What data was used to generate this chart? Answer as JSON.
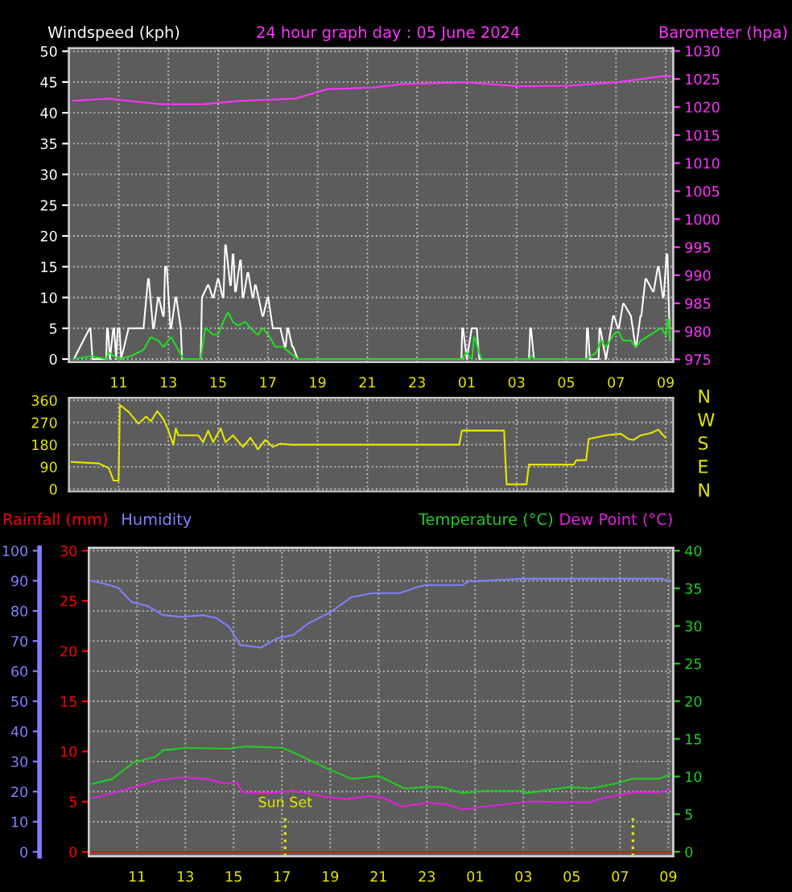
{
  "chart_data": [
    {
      "type": "line",
      "title": "24 hour graph day : 05 June 2024",
      "ylabel": "Windspeed (kph)",
      "y2label": "Barometer (hpa)",
      "xlim": [
        "2024-06-04T09:00",
        "2024-06-05T09:18"
      ],
      "xticks": [
        {
          "value": "2024-06-04T11:00",
          "label": "11"
        },
        {
          "value": "2024-06-04T13:00",
          "label": "13"
        },
        {
          "value": "2024-06-04T15:00",
          "label": "15"
        },
        {
          "value": "2024-06-04T17:00",
          "label": "17"
        },
        {
          "value": "2024-06-04T19:00",
          "label": "19"
        },
        {
          "value": "2024-06-04T21:00",
          "label": "21"
        },
        {
          "value": "2024-06-04T23:00",
          "label": "23"
        },
        {
          "value": "2024-06-05T01:00",
          "label": "01"
        },
        {
          "value": "2024-06-05T03:00",
          "label": "03"
        },
        {
          "value": "2024-06-05T05:00",
          "label": "05"
        },
        {
          "value": "2024-06-05T07:00",
          "label": "07"
        },
        {
          "value": "2024-06-05T09:00",
          "label": "09"
        }
      ],
      "ylim": [
        -0.5,
        50.5
      ],
      "yticks": [
        0,
        5,
        10,
        15,
        20,
        25,
        30,
        35,
        40,
        45,
        50
      ],
      "y2lim": [
        974.5,
        1030.5
      ],
      "y2ticks": [
        975,
        980,
        985,
        990,
        995,
        1000,
        1005,
        1010,
        1015,
        1020,
        1025,
        1030
      ],
      "grid": true,
      "line_style": "solid",
      "series": [
        {
          "color": "#ffffff",
          "x": [
            "2024-06-04T09:12",
            "2024-06-04T09:50",
            "2024-06-04T09:52",
            "2024-06-04T09:57",
            "2024-06-04T10:30",
            "2024-06-04T10:32",
            "2024-06-04T10:34",
            "2024-06-04T10:39",
            "2024-06-04T10:47",
            "2024-06-04T10:49",
            "2024-06-04T10:54",
            "2024-06-04T10:58",
            "2024-06-04T11:02",
            "2024-06-04T11:06",
            "2024-06-04T11:24",
            "2024-06-04T12:00",
            "2024-06-04T12:11",
            "2024-06-04T12:13",
            "2024-06-04T12:23",
            "2024-06-04T12:25",
            "2024-06-04T12:35",
            "2024-06-04T12:37",
            "2024-06-04T12:47",
            "2024-06-04T12:49",
            "2024-06-04T12:52",
            "2024-06-04T12:56",
            "2024-06-04T13:05",
            "2024-06-04T13:07",
            "2024-06-04T13:17",
            "2024-06-04T13:19",
            "2024-06-04T13:30",
            "2024-06-04T13:33",
            "2024-06-04T14:18",
            "2024-06-04T14:21",
            "2024-06-04T14:35",
            "2024-06-04T14:37",
            "2024-06-04T14:47",
            "2024-06-04T14:49",
            "2024-06-04T14:59",
            "2024-06-04T15:01",
            "2024-06-04T15:11",
            "2024-06-04T15:13",
            "2024-06-04T15:17",
            "2024-06-04T15:19",
            "2024-06-04T15:29",
            "2024-06-04T15:31",
            "2024-06-04T15:35",
            "2024-06-04T15:37",
            "2024-06-04T15:41",
            "2024-06-04T15:43",
            "2024-06-04T15:53",
            "2024-06-04T15:55",
            "2024-06-04T15:59",
            "2024-06-04T16:01",
            "2024-06-04T16:11",
            "2024-06-04T16:13",
            "2024-06-04T16:23",
            "2024-06-04T16:25",
            "2024-06-04T16:29",
            "2024-06-04T16:31",
            "2024-06-04T16:47",
            "2024-06-04T16:49",
            "2024-06-04T16:59",
            "2024-06-04T17:01",
            "2024-06-04T17:12",
            "2024-06-04T17:30",
            "2024-06-04T17:41",
            "2024-06-04T17:43",
            "2024-06-04T17:47",
            "2024-06-04T17:49",
            "2024-06-04T17:59",
            "2024-06-04T18:01",
            "2024-06-04T18:12",
            "2024-06-05T00:47",
            "2024-06-05T00:49",
            "2024-06-05T00:51",
            "2024-06-05T01:00",
            "2024-06-05T01:12",
            "2024-06-05T01:24",
            "2024-06-05T01:30",
            "2024-06-05T03:30",
            "2024-06-05T03:33",
            "2024-06-05T03:35",
            "2024-06-05T03:42",
            "2024-06-05T05:48",
            "2024-06-05T05:50",
            "2024-06-05T05:52",
            "2024-06-05T05:57",
            "2024-06-05T06:18",
            "2024-06-05T06:20",
            "2024-06-05T06:22",
            "2024-06-05T06:30",
            "2024-06-05T06:36",
            "2024-06-05T06:53",
            "2024-06-05T06:55",
            "2024-06-05T07:05",
            "2024-06-05T07:07",
            "2024-06-05T07:17",
            "2024-06-05T07:19",
            "2024-06-05T07:36",
            "2024-06-05T07:47",
            "2024-06-05T07:49",
            "2024-06-05T07:59",
            "2024-06-05T08:01",
            "2024-06-05T08:11",
            "2024-06-05T08:13",
            "2024-06-05T08:29",
            "2024-06-05T08:31",
            "2024-06-05T08:41",
            "2024-06-05T08:43",
            "2024-06-05T08:53",
            "2024-06-05T08:55",
            "2024-06-05T09:02",
            "2024-06-05T09:04",
            "2024-06-05T09:09"
          ],
          "values": [
            0,
            5,
            5,
            0,
            0,
            5,
            5,
            0,
            5,
            5,
            0,
            5,
            5,
            0,
            5,
            5,
            13,
            13,
            5,
            5,
            10,
            10,
            7,
            7,
            15,
            15,
            5,
            5,
            10,
            10,
            5,
            0,
            0,
            10,
            12,
            12,
            10,
            10,
            13,
            13,
            10,
            10,
            18.5,
            18.5,
            12,
            12,
            17,
            17,
            11,
            11,
            16,
            16,
            10,
            10,
            14,
            14,
            10,
            10,
            12,
            12,
            7,
            7,
            10,
            10,
            5,
            5,
            2,
            2,
            5,
            5,
            2,
            2,
            0,
            0,
            5,
            5,
            0,
            5,
            5,
            0,
            0,
            5,
            5,
            0,
            0,
            5,
            5,
            0,
            0,
            5,
            5,
            2,
            0,
            7,
            7,
            5,
            5,
            9,
            9,
            7,
            2,
            2,
            7,
            7,
            13,
            13,
            11,
            11,
            15,
            15,
            10,
            10,
            17,
            17,
            5
          ]
        },
        {
          "color": "#22dd22",
          "x": [
            "2024-06-04T09:12",
            "2024-06-04T09:54",
            "2024-06-04T10:30",
            "2024-06-04T10:35",
            "2024-06-04T10:37",
            "2024-06-04T11:00",
            "2024-06-04T11:30",
            "2024-06-04T12:00",
            "2024-06-04T12:17",
            "2024-06-04T12:19",
            "2024-06-04T12:36",
            "2024-06-04T12:47",
            "2024-06-04T12:49",
            "2024-06-04T13:05",
            "2024-06-04T13:07",
            "2024-06-04T13:24",
            "2024-06-04T13:36",
            "2024-06-04T14:18",
            "2024-06-04T14:29",
            "2024-06-04T14:31",
            "2024-06-04T14:47",
            "2024-06-04T15:00",
            "2024-06-04T15:12",
            "2024-06-04T15:23",
            "2024-06-04T15:25",
            "2024-06-04T15:36",
            "2024-06-04T15:47",
            "2024-06-04T15:49",
            "2024-06-04T16:05",
            "2024-06-04T16:07",
            "2024-06-04T16:18",
            "2024-06-04T16:35",
            "2024-06-04T16:37",
            "2024-06-04T16:47",
            "2024-06-04T16:49",
            "2024-06-04T16:59",
            "2024-06-04T17:01",
            "2024-06-04T17:18",
            "2024-06-04T17:36",
            "2024-06-04T17:54",
            "2024-06-04T18:12",
            "2024-06-05T00:48",
            "2024-06-05T00:59",
            "2024-06-05T01:01",
            "2024-06-05T01:11",
            "2024-06-05T01:13",
            "2024-06-05T01:17",
            "2024-06-05T01:19",
            "2024-06-05T01:30",
            "2024-06-05T01:36",
            "2024-06-05T03:30",
            "2024-06-05T03:35",
            "2024-06-05T03:37",
            "2024-06-05T03:42",
            "2024-06-05T05:48",
            "2024-06-05T06:00",
            "2024-06-05T06:12",
            "2024-06-05T06:23",
            "2024-06-05T06:25",
            "2024-06-05T06:35",
            "2024-06-05T06:37",
            "2024-06-05T06:54",
            "2024-06-05T07:06",
            "2024-06-05T07:17",
            "2024-06-05T07:19",
            "2024-06-05T07:36",
            "2024-06-05T07:47",
            "2024-06-05T07:49",
            "2024-06-05T08:00",
            "2024-06-05T08:12",
            "2024-06-05T08:24",
            "2024-06-05T08:36",
            "2024-06-05T08:47",
            "2024-06-05T08:49",
            "2024-06-05T08:59",
            "2024-06-05T09:01",
            "2024-06-05T09:05",
            "2024-06-05T09:07",
            "2024-06-05T09:10"
          ],
          "values": [
            0,
            0.5,
            0,
            1,
            1,
            0,
            0.5,
            1.5,
            3.5,
            3.5,
            3,
            2,
            2,
            3.5,
            3.5,
            1.5,
            0,
            0,
            5,
            5,
            4,
            4,
            6,
            7.5,
            7.5,
            6,
            5.5,
            5.5,
            6,
            6,
            5,
            4,
            4,
            5,
            5,
            4,
            4,
            2,
            2,
            1,
            0,
            0,
            1,
            1,
            0,
            0,
            3.5,
            3.5,
            1,
            0,
            0,
            0.5,
            0.5,
            0,
            0,
            0.5,
            1,
            3,
            3,
            2,
            2,
            4,
            4.5,
            3,
            3,
            3,
            2,
            2,
            3,
            3.5,
            4,
            4.5,
            5,
            5,
            4,
            4,
            6.5,
            6.5,
            3
          ]
        },
        {
          "color": "#ff33ff",
          "axis": "y2",
          "x": [
            "2024-06-04T09:10",
            "2024-06-04T10:34",
            "2024-06-04T12:42",
            "2024-06-04T14:24",
            "2024-06-04T15:54",
            "2024-06-04T18:06",
            "2024-06-04T19:24",
            "2024-06-04T21:18",
            "2024-06-04T22:24",
            "2024-06-05T01:00",
            "2024-06-05T03:06",
            "2024-06-05T05:06",
            "2024-06-05T07:00",
            "2024-06-05T08:54",
            "2024-06-05T09:12"
          ],
          "values": [
            1021.1,
            1021.5,
            1020.5,
            1020.5,
            1021.1,
            1021.5,
            1023.2,
            1023.5,
            1024.1,
            1024.4,
            1023.7,
            1023.8,
            1024.4,
            1025.5,
            1025.5
          ]
        }
      ]
    },
    {
      "type": "line",
      "tick_labels": "y",
      "xlim": [
        "2024-06-04T09:00",
        "2024-06-05T09:18"
      ],
      "xticks": [
        {
          "value": "2024-06-04T11:00",
          "label": null
        },
        {
          "value": "2024-06-04T13:00",
          "label": null
        },
        {
          "value": "2024-06-04T15:00",
          "label": null
        },
        {
          "value": "2024-06-04T17:00",
          "label": null
        },
        {
          "value": "2024-06-04T19:00",
          "label": null
        },
        {
          "value": "2024-06-04T21:00",
          "label": null
        },
        {
          "value": "2024-06-04T23:00",
          "label": null
        },
        {
          "value": "2024-06-05T01:00",
          "label": null
        },
        {
          "value": "2024-06-05T03:00",
          "label": null
        },
        {
          "value": "2024-06-05T05:00",
          "label": null
        },
        {
          "value": "2024-06-05T07:00",
          "label": null
        },
        {
          "value": "2024-06-05T09:00",
          "label": null
        }
      ],
      "ylim": [
        -10,
        370
      ],
      "yticks": [
        0,
        90,
        180,
        270,
        360
      ],
      "annotations": [
        "N",
        "W",
        "S",
        "E",
        "N"
      ],
      "grid": true,
      "line_style": "solid",
      "series": [
        {
          "color": "#e6e600",
          "x": [
            "2024-06-04T09:06",
            "2024-06-04T10:12",
            "2024-06-04T10:36",
            "2024-06-04T10:48",
            "2024-06-04T11:00",
            "2024-06-04T11:03",
            "2024-06-04T11:24",
            "2024-06-04T11:48",
            "2024-06-04T12:06",
            "2024-06-04T12:18",
            "2024-06-04T12:33",
            "2024-06-04T12:48",
            "2024-06-04T13:00",
            "2024-06-04T13:12",
            "2024-06-04T13:18",
            "2024-06-04T13:24",
            "2024-06-04T14:12",
            "2024-06-04T14:24",
            "2024-06-04T14:36",
            "2024-06-04T14:48",
            "2024-06-04T15:06",
            "2024-06-04T15:18",
            "2024-06-04T15:36",
            "2024-06-04T16:00",
            "2024-06-04T16:18",
            "2024-06-04T16:36",
            "2024-06-04T16:54",
            "2024-06-04T17:12",
            "2024-06-04T17:30",
            "2024-06-04T17:54",
            "2024-06-05T00:42",
            "2024-06-05T00:48",
            "2024-06-05T02:30",
            "2024-06-05T02:36",
            "2024-06-05T03:24",
            "2024-06-05T03:30",
            "2024-06-05T05:18",
            "2024-06-05T05:24",
            "2024-06-05T05:48",
            "2024-06-05T05:54",
            "2024-06-05T06:36",
            "2024-06-05T07:12",
            "2024-06-05T07:30",
            "2024-06-05T07:42",
            "2024-06-05T08:00",
            "2024-06-05T08:24",
            "2024-06-05T08:42",
            "2024-06-05T08:54",
            "2024-06-05T09:00"
          ],
          "values": [
            110,
            104,
            85,
            34,
            34,
            341,
            313,
            265,
            294,
            275,
            316,
            284,
            237,
            180,
            246,
            218,
            218,
            190,
            237,
            190,
            246,
            190,
            218,
            171,
            208,
            161,
            199,
            171,
            184,
            180,
            180,
            237,
            237,
            19,
            19,
            99,
            99,
            117,
            117,
            203,
            218,
            224,
            203,
            199,
            218,
            227,
            241,
            218,
            208
          ]
        }
      ]
    },
    {
      "type": "line",
      "xlim": [
        "2024-06-04T09:00",
        "2024-06-05T09:12"
      ],
      "xticks": [
        {
          "value": "2024-06-04T11:00",
          "label": "11"
        },
        {
          "value": "2024-06-04T13:00",
          "label": "13"
        },
        {
          "value": "2024-06-04T15:00",
          "label": "15"
        },
        {
          "value": "2024-06-04T17:00",
          "label": "17"
        },
        {
          "value": "2024-06-04T19:00",
          "label": "19"
        },
        {
          "value": "2024-06-04T21:00",
          "label": "21"
        },
        {
          "value": "2024-06-04T23:00",
          "label": "23"
        },
        {
          "value": "2024-06-05T01:00",
          "label": "01"
        },
        {
          "value": "2024-06-05T03:00",
          "label": "03"
        },
        {
          "value": "2024-06-05T05:00",
          "label": "05"
        },
        {
          "value": "2024-06-05T07:00",
          "label": "07"
        },
        {
          "value": "2024-06-05T09:00",
          "label": "09"
        }
      ],
      "ylim": [
        -1.5,
        101
      ],
      "yticks": [
        0,
        10,
        20,
        30,
        40,
        50,
        60,
        70,
        80,
        90,
        100
      ],
      "y2lim": [
        -0.6,
        40.4
      ],
      "y2ticks": [
        0,
        5,
        10,
        15,
        20,
        25,
        30,
        35,
        40
      ],
      "y3lim": [
        -0.45,
        30.3
      ],
      "y3ticks": [
        0,
        5,
        10,
        15,
        20,
        25,
        30
      ],
      "grid": true,
      "line_style": "solid",
      "ref_lines": [
        {
          "axis": "x",
          "value": "2024-06-04T17:08",
          "label": "Sun Set",
          "color": "#e6e600",
          "line_style": "dotted"
        },
        {
          "axis": "x",
          "value": "2024-06-05T07:32",
          "color": "#e6e600",
          "line_style": "dotted"
        }
      ],
      "series": [
        {
          "name": "Rainfall (mm)",
          "color": "#ff0000",
          "axis": "y3",
          "x": [
            "2024-06-04T09:06",
            "2024-06-05T09:06"
          ],
          "values": [
            0,
            0
          ]
        },
        {
          "name": "Humidity",
          "color": "#8080ff",
          "x": [
            "2024-06-04T09:07",
            "2024-06-04T09:40",
            "2024-06-04T10:13",
            "2024-06-04T10:46",
            "2024-06-04T11:25",
            "2024-06-04T12:05",
            "2024-06-04T12:51",
            "2024-06-04T13:44",
            "2024-06-04T14:16",
            "2024-06-04T14:49",
            "2024-06-04T15:16",
            "2024-06-04T16:08",
            "2024-06-04T16:48",
            "2024-06-04T17:28",
            "2024-06-04T18:07",
            "2024-06-04T19:00",
            "2024-06-04T19:53",
            "2024-06-04T20:46",
            "2024-06-04T21:52",
            "2024-06-04T22:31",
            "2024-06-04T22:58",
            "2024-06-05T00:29",
            "2024-06-05T00:43",
            "2024-06-05T02:15",
            "2024-06-05T02:55",
            "2024-06-05T04:40",
            "2024-06-05T08:44",
            "2024-06-05T09:04"
          ],
          "values": [
            90,
            89,
            87.7,
            83,
            81.7,
            78.6,
            78,
            78.6,
            77.7,
            74.7,
            68.7,
            67.8,
            70.9,
            72,
            76,
            79.5,
            84.6,
            85.9,
            85.9,
            87.7,
            88.6,
            88.6,
            89.8,
            90.4,
            90.7,
            90.7,
            90.7,
            89.8
          ]
        },
        {
          "name": "Temperature (°C)",
          "color": "#22cc22",
          "axis": "y2",
          "x": [
            "2024-06-04T09:07",
            "2024-06-04T09:59",
            "2024-06-04T10:52",
            "2024-06-04T11:45",
            "2024-06-04T12:05",
            "2024-06-04T13:04",
            "2024-06-04T14:49",
            "2024-06-04T15:29",
            "2024-06-04T17:01",
            "2024-06-04T17:41",
            "2024-06-04T18:47",
            "2024-06-04T19:53",
            "2024-06-04T20:32",
            "2024-06-04T20:59",
            "2024-06-04T22:05",
            "2024-06-04T22:58",
            "2024-06-04T23:37",
            "2024-06-05T00:29",
            "2024-06-05T01:22",
            "2024-06-05T02:55",
            "2024-06-05T03:08",
            "2024-06-05T04:53",
            "2024-06-05T05:46",
            "2024-06-05T06:52",
            "2024-06-05T07:32",
            "2024-06-05T08:38",
            "2024-06-05T09:04"
          ],
          "values": [
            9.0,
            9.7,
            11.9,
            12.6,
            13.5,
            13.8,
            13.7,
            14.0,
            13.8,
            12.9,
            11.2,
            9.7,
            9.9,
            10.1,
            8.4,
            8.6,
            8.6,
            7.8,
            8.1,
            8.1,
            7.8,
            8.6,
            8.4,
            9.1,
            9.7,
            9.7,
            10.3
          ]
        },
        {
          "name": "Dew Point (°C)",
          "color": "#dd22dd",
          "axis": "y2",
          "x": [
            "2024-06-04T09:07",
            "2024-06-04T09:59",
            "2024-06-04T10:52",
            "2024-06-04T11:52",
            "2024-06-04T12:51",
            "2024-06-04T13:50",
            "2024-06-04T14:36",
            "2024-06-04T15:09",
            "2024-06-04T15:22",
            "2024-06-04T16:35",
            "2024-06-04T17:28",
            "2024-06-04T18:47",
            "2024-06-04T19:40",
            "2024-06-04T20:32",
            "2024-06-04T21:12",
            "2024-06-04T21:58",
            "2024-06-04T22:58",
            "2024-06-04T23:50",
            "2024-06-05T00:29",
            "2024-06-05T01:22",
            "2024-06-05T02:15",
            "2024-06-05T03:21",
            "2024-06-05T04:27",
            "2024-06-05T05:46",
            "2024-06-05T06:13",
            "2024-06-05T07:32",
            "2024-06-05T08:38",
            "2024-06-05T09:04"
          ],
          "values": [
            7.1,
            7.8,
            8.6,
            9.5,
            9.9,
            9.7,
            9.1,
            9.2,
            7.9,
            7.8,
            8.1,
            7.3,
            7.0,
            7.4,
            7.2,
            6.0,
            6.5,
            6.3,
            5.6,
            6.0,
            6.3,
            6.7,
            6.6,
            6.6,
            7.1,
            7.9,
            7.9,
            8.3
          ]
        }
      ]
    }
  ]
}
